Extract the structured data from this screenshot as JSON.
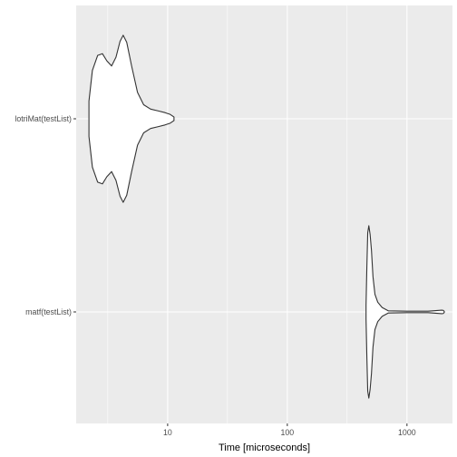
{
  "chart_data": {
    "type": "violin",
    "orientation": "horizontal",
    "title": "",
    "xlabel": "Time [microseconds]",
    "ylabel": "",
    "x_scale": "log10",
    "xlim": [
      1.72,
      2400
    ],
    "x_ticks": [
      {
        "value": 10,
        "label": "10"
      },
      {
        "value": 100,
        "label": "100"
      },
      {
        "value": 1000,
        "label": "1000"
      }
    ],
    "x_minor_ticks": [
      3.16,
      31.6,
      316
    ],
    "categories": [
      "matf(testList)",
      "lotriMat(testList)"
    ],
    "grid": true,
    "panel_background": "#ebebeb",
    "grid_color": "#ffffff",
    "violin_fill": "#ffffff",
    "violin_stroke": "#333333",
    "series": [
      {
        "category": "lotriMat(testList)",
        "profile": [
          {
            "x": 2.2,
            "w": 0.2
          },
          {
            "x": 2.35,
            "w": 0.55
          },
          {
            "x": 2.6,
            "w": 0.72
          },
          {
            "x": 2.85,
            "w": 0.74
          },
          {
            "x": 3.1,
            "w": 0.66
          },
          {
            "x": 3.4,
            "w": 0.6
          },
          {
            "x": 3.7,
            "w": 0.7
          },
          {
            "x": 4.0,
            "w": 0.88
          },
          {
            "x": 4.25,
            "w": 0.95
          },
          {
            "x": 4.55,
            "w": 0.87
          },
          {
            "x": 5.0,
            "w": 0.6
          },
          {
            "x": 5.6,
            "w": 0.3
          },
          {
            "x": 6.3,
            "w": 0.16
          },
          {
            "x": 7.2,
            "w": 0.11
          },
          {
            "x": 8.3,
            "w": 0.09
          },
          {
            "x": 9.5,
            "w": 0.07
          },
          {
            "x": 10.5,
            "w": 0.05
          },
          {
            "x": 11.3,
            "w": 0.02
          }
        ]
      },
      {
        "category": "matf(testList)",
        "profile": [
          {
            "x": 455,
            "w": 0.08
          },
          {
            "x": 462,
            "w": 0.5
          },
          {
            "x": 470,
            "w": 0.9
          },
          {
            "x": 480,
            "w": 0.98
          },
          {
            "x": 492,
            "w": 0.88
          },
          {
            "x": 505,
            "w": 0.7
          },
          {
            "x": 520,
            "w": 0.4
          },
          {
            "x": 540,
            "w": 0.2
          },
          {
            "x": 570,
            "w": 0.11
          },
          {
            "x": 620,
            "w": 0.05
          },
          {
            "x": 700,
            "w": 0.012
          },
          {
            "x": 1000,
            "w": 0.008
          },
          {
            "x": 1500,
            "w": 0.008
          },
          {
            "x": 1950,
            "w": 0.02
          },
          {
            "x": 2010,
            "w": 0.018
          },
          {
            "x": 2050,
            "w": 0.005
          }
        ]
      }
    ]
  }
}
